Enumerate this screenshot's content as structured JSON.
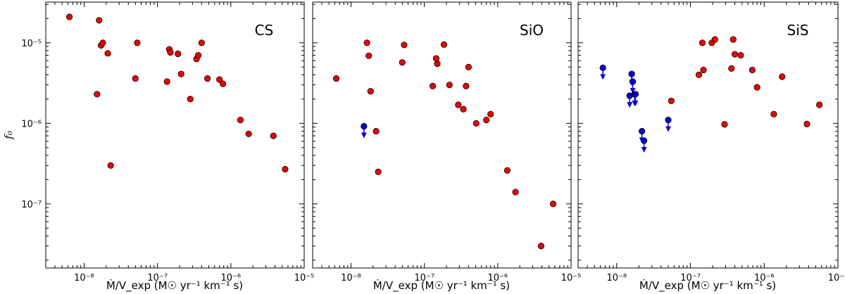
{
  "chart_data": [
    {
      "type": "scatter",
      "title": "CS",
      "xlabel": "Ṁ/V_exp (M☉ yr⁻¹ km⁻¹ s)",
      "ylabel": "f₀",
      "xscale": "log",
      "yscale": "log",
      "xlim": [
        3e-09,
        1e-05
      ],
      "ylim": [
        1.6e-08,
        3.2e-05
      ],
      "series": [
        {
          "color": "#ee0000",
          "marker": "circle",
          "points": [
            [
              6.3e-09,
              2.1e-05
            ],
            [
              1.6e-08,
              1.9e-05
            ],
            [
              1.7e-08,
              9.3e-06
            ],
            [
              1.8e-08,
              1e-05
            ],
            [
              2.1e-08,
              7.4e-06
            ],
            [
              1.5e-08,
              2.3e-06
            ],
            [
              2.3e-08,
              3e-07
            ],
            [
              5.3e-08,
              1e-05
            ],
            [
              5e-08,
              3.6e-06
            ],
            [
              1.45e-07,
              8.3e-06
            ],
            [
              1.5e-07,
              7.6e-06
            ],
            [
              1.9e-07,
              7.3e-06
            ],
            [
              1.35e-07,
              3.3e-06
            ],
            [
              2.1e-07,
              4.1e-06
            ],
            [
              2.8e-07,
              2e-06
            ],
            [
              3.4e-07,
              6.3e-06
            ],
            [
              3.6e-07,
              7e-06
            ],
            [
              4e-07,
              1e-05
            ],
            [
              4.8e-07,
              3.6e-06
            ],
            [
              7e-07,
              3.5e-06
            ],
            [
              7.8e-07,
              3.1e-06
            ],
            [
              1.35e-06,
              1.1e-06
            ],
            [
              1.75e-06,
              7.4e-07
            ],
            [
              3.8e-06,
              7e-07
            ],
            [
              5.5e-06,
              2.7e-07
            ]
          ]
        }
      ],
      "x_ticks": [
        "10⁻⁸",
        "10⁻⁷",
        "10⁻⁶",
        "10⁻⁵"
      ],
      "y_ticks": [
        "10⁻⁵",
        "10⁻⁶",
        "10⁻⁷"
      ]
    },
    {
      "type": "scatter",
      "title": "SiO",
      "xlabel": "Ṁ/V_exp (M☉ yr⁻¹ km⁻¹ s)",
      "xscale": "log",
      "yscale": "log",
      "xlim": [
        3e-09,
        1e-05
      ],
      "ylim": [
        1.6e-08,
        3.2e-05
      ],
      "series": [
        {
          "color": "#ee0000",
          "marker": "circle",
          "points": [
            [
              6.3e-09,
              3.6e-06
            ],
            [
              1.65e-08,
              1e-05
            ],
            [
              1.75e-08,
              6.9e-06
            ],
            [
              1.85e-08,
              2.5e-06
            ],
            [
              2.2e-08,
              8e-07
            ],
            [
              2.35e-08,
              2.5e-07
            ],
            [
              5e-08,
              5.7e-06
            ],
            [
              5.3e-08,
              9.4e-06
            ],
            [
              1.3e-07,
              2.9e-06
            ],
            [
              1.45e-07,
              6.4e-06
            ],
            [
              1.5e-07,
              5.5e-06
            ],
            [
              1.85e-07,
              9.5e-06
            ],
            [
              2.2e-07,
              3e-06
            ],
            [
              2.9e-07,
              1.7e-06
            ],
            [
              3.4e-07,
              1.5e-06
            ],
            [
              3.7e-07,
              2.9e-06
            ],
            [
              4e-07,
              5e-06
            ],
            [
              5.1e-07,
              1e-06
            ],
            [
              7e-07,
              1.1e-06
            ],
            [
              8e-07,
              1.3e-06
            ],
            [
              1.35e-06,
              2.6e-07
            ],
            [
              1.75e-06,
              1.4e-07
            ],
            [
              3.9e-06,
              3e-08
            ],
            [
              5.7e-06,
              1e-07
            ]
          ]
        },
        {
          "color": "#0000dd",
          "marker": "upper-limit",
          "points": [
            [
              1.5e-08,
              9.2e-07
            ]
          ]
        }
      ],
      "x_ticks": [
        "10⁻⁸",
        "10⁻⁷",
        "10⁻⁶",
        "10⁻⁵"
      ]
    },
    {
      "type": "scatter",
      "title": "SiS",
      "xlabel": "Ṁ/V_exp (M☉ yr⁻¹ km⁻¹ s)",
      "xscale": "log",
      "yscale": "log",
      "xlim": [
        3e-09,
        1e-05
      ],
      "ylim": [
        1.6e-08,
        3.2e-05
      ],
      "series": [
        {
          "color": "#ee0000",
          "marker": "circle",
          "points": [
            [
              5.5e-08,
              1.9e-06
            ],
            [
              1.3e-07,
              4e-06
            ],
            [
              1.45e-07,
              1e-05
            ],
            [
              1.5e-07,
              4.6e-06
            ],
            [
              1.95e-07,
              1e-05
            ],
            [
              2.15e-07,
              1.1e-05
            ],
            [
              2.9e-07,
              9.7e-07
            ],
            [
              3.6e-07,
              4.8e-06
            ],
            [
              3.8e-07,
              1.1e-05
            ],
            [
              4e-07,
              7.2e-06
            ],
            [
              4.8e-07,
              7e-06
            ],
            [
              6.9e-07,
              4.6e-06
            ],
            [
              8e-07,
              2.8e-06
            ],
            [
              1.35e-06,
              1.3e-06
            ],
            [
              1.75e-06,
              3.8e-06
            ],
            [
              3.8e-06,
              9.8e-07
            ],
            [
              5.6e-06,
              1.7e-06
            ]
          ]
        },
        {
          "color": "#0000dd",
          "marker": "upper-limit",
          "points": [
            [
              6.5e-09,
              4.9e-06
            ],
            [
              1.5e-08,
              2.2e-06
            ],
            [
              1.6e-08,
              4.1e-06
            ],
            [
              1.65e-08,
              3.3e-06
            ],
            [
              1.75e-08,
              2.3e-06
            ],
            [
              1.8e-08,
              2.3e-06
            ],
            [
              2.2e-08,
              8e-07
            ],
            [
              2.35e-08,
              6.1e-07
            ],
            [
              5e-08,
              1.1e-06
            ]
          ]
        }
      ],
      "x_ticks": [
        "10⁻⁸",
        "10⁻⁷",
        "10⁻⁶",
        "10⁻⁵"
      ]
    }
  ]
}
